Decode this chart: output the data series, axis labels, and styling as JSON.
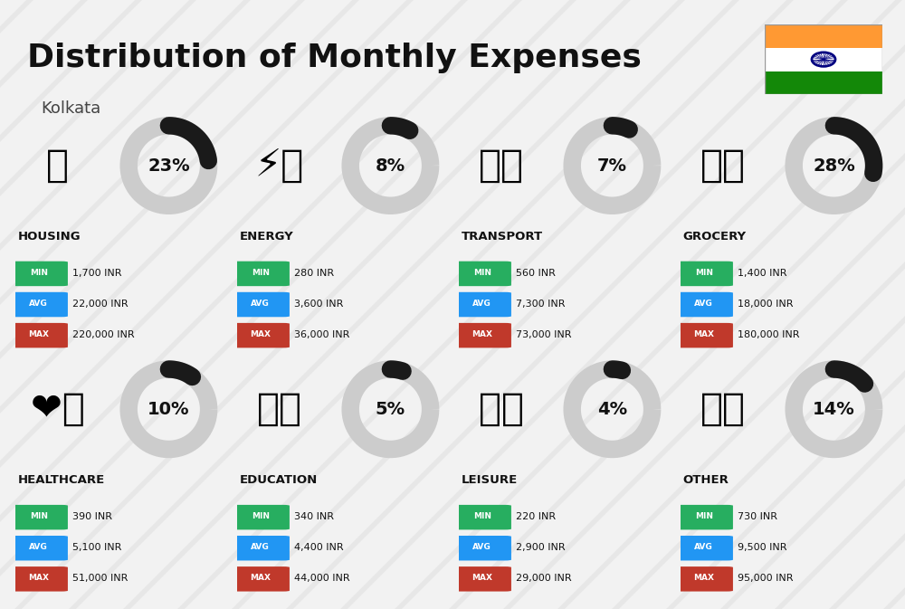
{
  "title": "Distribution of Monthly Expenses",
  "subtitle": "Kolkata",
  "background_color": "#f2f2f2",
  "categories": [
    {
      "name": "HOUSING",
      "percent": 23,
      "emoji": "🏢",
      "min": "1,700 INR",
      "avg": "22,000 INR",
      "max": "220,000 INR",
      "col": 0,
      "row": 0
    },
    {
      "name": "ENERGY",
      "percent": 8,
      "emoji": "⚡🏠",
      "min": "280 INR",
      "avg": "3,600 INR",
      "max": "36,000 INR",
      "col": 1,
      "row": 0
    },
    {
      "name": "TRANSPORT",
      "percent": 7,
      "emoji": "🚌🚗",
      "min": "560 INR",
      "avg": "7,300 INR",
      "max": "73,000 INR",
      "col": 2,
      "row": 0
    },
    {
      "name": "GROCERY",
      "percent": 28,
      "emoji": "🛒🥬",
      "min": "1,400 INR",
      "avg": "18,000 INR",
      "max": "180,000 INR",
      "col": 3,
      "row": 0
    },
    {
      "name": "HEALTHCARE",
      "percent": 10,
      "emoji": "❤️💉",
      "min": "390 INR",
      "avg": "5,100 INR",
      "max": "51,000 INR",
      "col": 0,
      "row": 1
    },
    {
      "name": "EDUCATION",
      "percent": 5,
      "emoji": "🎓📚",
      "min": "340 INR",
      "avg": "4,400 INR",
      "max": "44,000 INR",
      "col": 1,
      "row": 1
    },
    {
      "name": "LEISURE",
      "percent": 4,
      "emoji": "🛍️👜",
      "min": "220 INR",
      "avg": "2,900 INR",
      "max": "29,000 INR",
      "col": 2,
      "row": 1
    },
    {
      "name": "OTHER",
      "percent": 14,
      "emoji": "👜💰",
      "min": "730 INR",
      "avg": "9,500 INR",
      "max": "95,000 INR",
      "col": 3,
      "row": 1
    }
  ],
  "min_color": "#27ae60",
  "avg_color": "#2196f3",
  "max_color": "#c0392b",
  "pie_filled_color": "#1a1a1a",
  "pie_empty_color": "#cccccc",
  "stripe_color": "#d8d8d8",
  "india_flag_colors": [
    "#FF9933",
    "#FFFFFF",
    "#138808"
  ],
  "india_flag_chakra_color": "#000080"
}
